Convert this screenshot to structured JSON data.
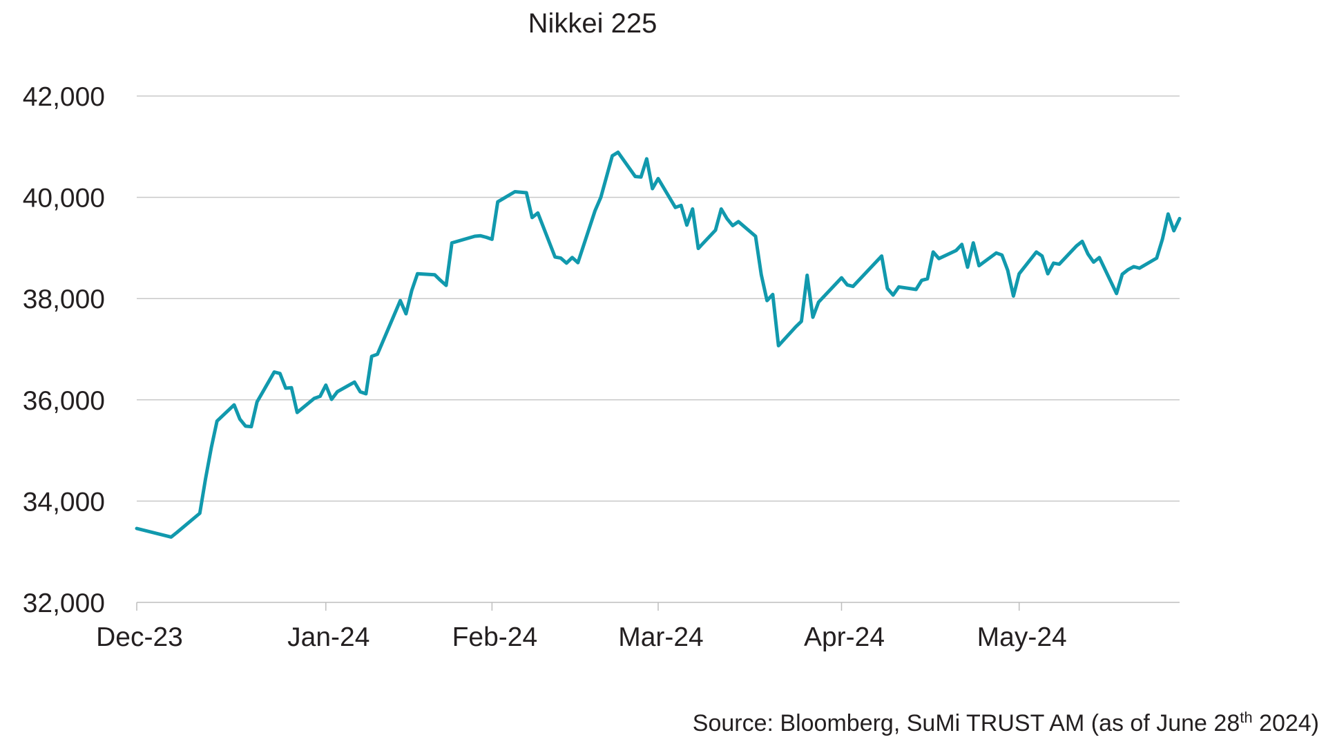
{
  "chart_data": {
    "type": "line",
    "title": "Nikkei 225",
    "xlabel": "",
    "ylabel": "",
    "ylim": [
      32000,
      42000
    ],
    "yticks": [
      32000,
      34000,
      36000,
      38000,
      40000,
      42000
    ],
    "ytick_labels": [
      "32,000",
      "34,000",
      "36,000",
      "38,000",
      "40,000",
      "42,000"
    ],
    "xlim": [
      "2023-12-29",
      "2024-06-28"
    ],
    "xticks": [
      "2023-12-29",
      "2024-01-31",
      "2024-02-29",
      "2024-03-29",
      "2024-04-30",
      "2024-05-31"
    ],
    "xtick_labels": [
      "Dec-23",
      "Jan-24",
      "Feb-24",
      "Mar-24",
      "Apr-24",
      "May-24"
    ],
    "grid": "horizontal",
    "legend": "none",
    "color": "#1199ad",
    "series": [
      {
        "x": [
          "2023-12-29",
          "2024-01-04",
          "2024-01-05",
          "2024-01-09",
          "2024-01-10",
          "2024-01-11",
          "2024-01-12",
          "2024-01-15",
          "2024-01-16",
          "2024-01-17",
          "2024-01-18",
          "2024-01-19",
          "2024-01-22",
          "2024-01-23",
          "2024-01-24",
          "2024-01-25",
          "2024-01-26",
          "2024-01-29",
          "2024-01-30",
          "2024-01-31",
          "2024-02-01",
          "2024-02-02",
          "2024-02-05",
          "2024-02-06",
          "2024-02-07",
          "2024-02-08",
          "2024-02-09",
          "2024-02-13",
          "2024-02-14",
          "2024-02-15",
          "2024-02-16",
          "2024-02-19",
          "2024-02-20",
          "2024-02-21",
          "2024-02-22",
          "2024-02-26",
          "2024-02-27",
          "2024-02-28",
          "2024-02-29",
          "2024-03-01",
          "2024-03-04",
          "2024-03-05",
          "2024-03-06",
          "2024-03-07",
          "2024-03-08",
          "2024-03-11",
          "2024-03-12",
          "2024-03-13",
          "2024-03-14",
          "2024-03-15",
          "2024-03-18",
          "2024-03-19",
          "2024-03-21",
          "2024-03-22",
          "2024-03-25",
          "2024-03-26",
          "2024-03-27",
          "2024-03-28",
          "2024-03-29",
          "2024-04-01",
          "2024-04-02",
          "2024-04-03",
          "2024-04-04",
          "2024-04-05",
          "2024-04-08",
          "2024-04-09",
          "2024-04-10",
          "2024-04-11",
          "2024-04-12",
          "2024-04-15",
          "2024-04-16",
          "2024-04-17",
          "2024-04-18",
          "2024-04-19",
          "2024-04-22",
          "2024-04-23",
          "2024-04-24",
          "2024-04-25",
          "2024-04-26",
          "2024-04-30",
          "2024-05-01",
          "2024-05-02",
          "2024-05-07",
          "2024-05-08",
          "2024-05-09",
          "2024-05-10",
          "2024-05-13",
          "2024-05-14",
          "2024-05-15",
          "2024-05-16",
          "2024-05-17",
          "2024-05-20",
          "2024-05-21",
          "2024-05-22",
          "2024-05-23",
          "2024-05-24",
          "2024-05-27",
          "2024-05-28",
          "2024-05-29",
          "2024-05-30",
          "2024-05-31",
          "2024-06-03",
          "2024-06-04",
          "2024-06-05",
          "2024-06-06",
          "2024-06-07",
          "2024-06-10",
          "2024-06-11",
          "2024-06-12",
          "2024-06-13",
          "2024-06-14",
          "2024-06-17",
          "2024-06-18",
          "2024-06-19",
          "2024-06-20",
          "2024-06-21",
          "2024-06-24",
          "2024-06-25",
          "2024-06-26",
          "2024-06-27",
          "2024-06-28"
        ],
        "y": [
          33460,
          33290,
          33380,
          33760,
          34440,
          35050,
          35580,
          35900,
          35620,
          35480,
          35470,
          35960,
          36550,
          36520,
          36230,
          36240,
          35750,
          36030,
          36070,
          36290,
          36010,
          36160,
          36350,
          36160,
          36120,
          36860,
          36900,
          37960,
          37700,
          38160,
          38490,
          38470,
          38360,
          38260,
          39100,
          39230,
          39240,
          39210,
          39170,
          39910,
          40110,
          40100,
          40090,
          39600,
          39690,
          38820,
          38800,
          38700,
          38810,
          38710,
          39740,
          40000,
          40820,
          40890,
          40410,
          40400,
          40760,
          40170,
          40370,
          39800,
          39840,
          39450,
          39770,
          38990,
          39350,
          39770,
          39580,
          39440,
          39520,
          39230,
          38470,
          37960,
          38080,
          37070,
          37440,
          37550,
          38460,
          37630,
          37930,
          38410,
          38270,
          38240,
          38840,
          38200,
          38070,
          38230,
          38180,
          38360,
          38390,
          38920,
          38790,
          38950,
          39070,
          38620,
          39100,
          38650,
          38900,
          38860,
          38560,
          38050,
          38490,
          38920,
          38840,
          38490,
          38700,
          38680,
          39040,
          39130,
          38880,
          38720,
          38810,
          38100,
          38480,
          38570,
          38630,
          38600,
          38800,
          39170,
          39670,
          39340,
          39580
        ]
      }
    ]
  },
  "source": {
    "prefix": "Source: Bloomberg, SuMi TRUST AM (as of June 28",
    "superscript": "th",
    "suffix": " 2024)"
  }
}
